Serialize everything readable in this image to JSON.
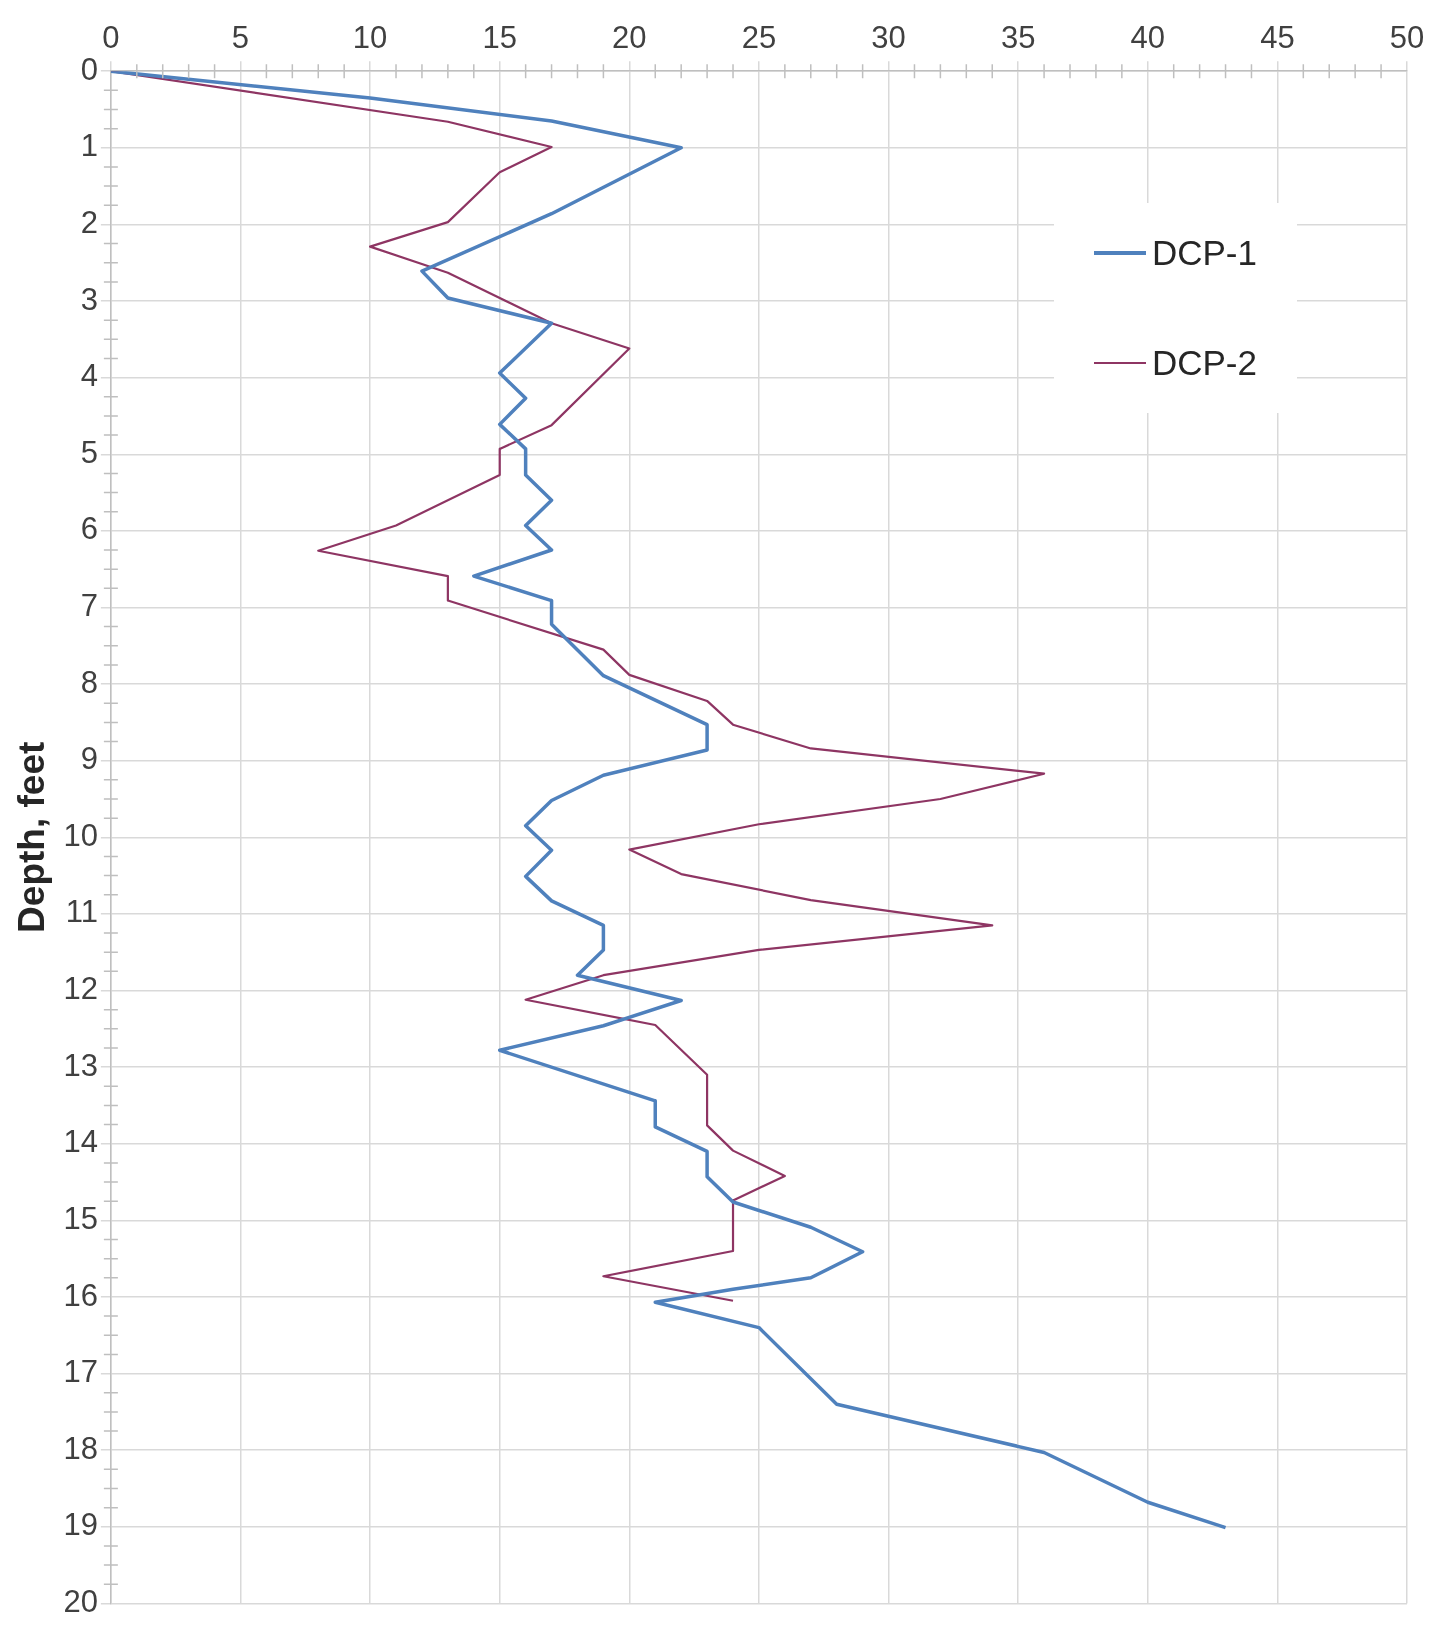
{
  "chart_data": {
    "type": "line",
    "ylabel": "Depth, feet",
    "xlim": [
      0,
      50
    ],
    "xticks": [
      0,
      5,
      10,
      15,
      20,
      25,
      30,
      35,
      40,
      45,
      50
    ],
    "ylim": [
      20,
      0
    ],
    "yticks": [
      0,
      1,
      2,
      3,
      4,
      5,
      6,
      7,
      8,
      9,
      10,
      11,
      12,
      13,
      14,
      15,
      16,
      17,
      18,
      19,
      20
    ],
    "grid": true,
    "legend": "top right",
    "line_style": "solid",
    "series": [
      {
        "name": "DCP-1",
        "color": "#4f81bd",
        "x": [
          0,
          10,
          17,
          22,
          17,
          12,
          13,
          17,
          15,
          16,
          15,
          16,
          16,
          17,
          16,
          17,
          14,
          17,
          17,
          19,
          23,
          23,
          19,
          17,
          16,
          17,
          16,
          17,
          19,
          19,
          18,
          22,
          19,
          15,
          21,
          21,
          23,
          23,
          24,
          27,
          29,
          27,
          24,
          21,
          25,
          28,
          36,
          40,
          43
        ],
        "values": [
          0,
          0.35,
          0.65,
          1.0,
          1.86,
          2.61,
          2.96,
          3.29,
          3.94,
          4.27,
          4.61,
          4.93,
          5.27,
          5.6,
          5.93,
          6.25,
          6.59,
          6.91,
          7.22,
          7.89,
          8.53,
          8.86,
          9.19,
          9.52,
          9.85,
          10.17,
          10.51,
          10.83,
          11.15,
          11.47,
          11.8,
          12.13,
          12.46,
          12.78,
          13.44,
          13.78,
          14.1,
          14.43,
          14.76,
          15.09,
          15.41,
          15.75,
          15.9,
          16.07,
          16.4,
          17.4,
          18.03,
          18.68,
          19.01
        ]
      },
      {
        "name": "DCP-2",
        "color": "#8e3563",
        "x": [
          0,
          13,
          17,
          15,
          13,
          10,
          13,
          17,
          20,
          17,
          15,
          15,
          11,
          8,
          13,
          13,
          19,
          20,
          23,
          24,
          27,
          36,
          32,
          25,
          20,
          22,
          27,
          34,
          25,
          19,
          16,
          21,
          23,
          23,
          24,
          26,
          24,
          24,
          19,
          24
        ],
        "values": [
          0,
          0.66,
          0.99,
          1.32,
          1.97,
          2.29,
          2.63,
          3.29,
          3.62,
          4.62,
          4.93,
          5.27,
          5.93,
          6.26,
          6.59,
          6.91,
          7.55,
          7.88,
          8.22,
          8.53,
          8.84,
          9.17,
          9.5,
          9.83,
          10.16,
          10.48,
          10.82,
          11.15,
          11.47,
          11.8,
          12.12,
          12.45,
          13.1,
          13.76,
          14.09,
          14.42,
          14.74,
          15.4,
          15.73,
          16.05
        ]
      }
    ]
  }
}
